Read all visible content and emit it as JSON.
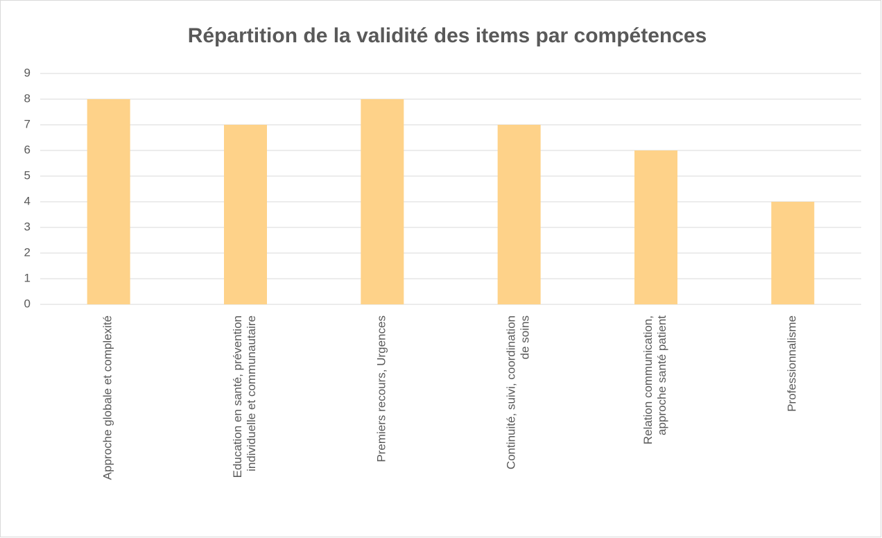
{
  "chart_data": {
    "type": "bar",
    "title": "Répartition de la validité des items par compétences",
    "categories": [
      "Approche globale et complexité",
      "Education en santé, prévention individuelle et communautaire",
      "Premiers recours, Urgences",
      "Continuité, suivi, coordination de soins",
      "Relation communication, approche santé patient",
      "Professionnalisme"
    ],
    "values": [
      8,
      7,
      8,
      7,
      6,
      4
    ],
    "color": "#fed289",
    "ylim": [
      0,
      9
    ],
    "yticks": [
      0,
      1,
      2,
      3,
      4,
      5,
      6,
      7,
      8,
      9
    ],
    "grid": true
  }
}
